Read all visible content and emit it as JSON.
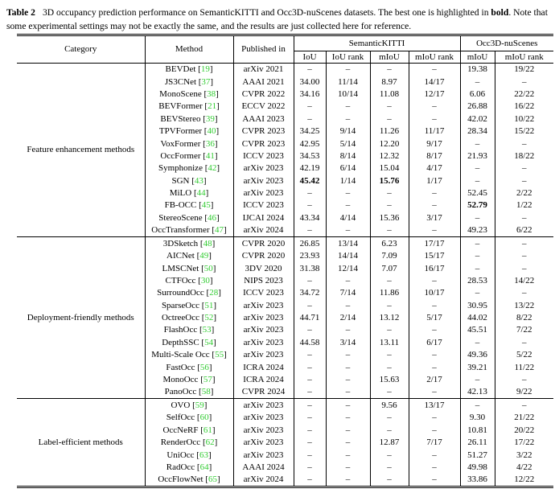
{
  "caption": {
    "label": "Table 2",
    "line1_a": "3D occupancy prediction performance on SemanticKITTI and Occ3D-nuScenes datasets. The best one is highlighted in ",
    "line1_bold": "bold",
    "line1_b": ". Note that some experimental settings may not be exactly the same, and the results are just collected here for reference."
  },
  "colors": {
    "citation_green": "#33cc33"
  },
  "table": {
    "header": {
      "category": "Category",
      "method": "Method",
      "published": "Published in",
      "kitti": "SemanticKITTI",
      "nuscenes": "Occ3D-nuScenes",
      "sub": [
        "IoU",
        "IoU rank",
        "mIoU",
        "mIoU rank",
        "mIoU",
        "mIoU rank"
      ]
    },
    "groups": [
      {
        "category": "Feature enhancement methods",
        "rows": [
          {
            "method": "BEVDet",
            "ref": "19",
            "venue": "arXiv 2021",
            "values": [
              "–",
              "–",
              "–",
              "–",
              "19.38",
              "19/22"
            ],
            "bold": []
          },
          {
            "method": "JS3CNet",
            "ref": "37",
            "venue": "AAAI 2021",
            "values": [
              "34.00",
              "11/14",
              "8.97",
              "14/17",
              "–",
              "–"
            ],
            "bold": []
          },
          {
            "method": "MonoScene",
            "ref": "38",
            "venue": "CVPR 2022",
            "values": [
              "34.16",
              "10/14",
              "11.08",
              "12/17",
              "6.06",
              "22/22"
            ],
            "bold": []
          },
          {
            "method": "BEVFormer",
            "ref": "21",
            "venue": "ECCV 2022",
            "values": [
              "–",
              "–",
              "–",
              "–",
              "26.88",
              "16/22"
            ],
            "bold": []
          },
          {
            "method": "BEVStereo",
            "ref": "39",
            "venue": "AAAI 2023",
            "values": [
              "–",
              "–",
              "–",
              "–",
              "42.02",
              "10/22"
            ],
            "bold": []
          },
          {
            "method": "TPVFormer",
            "ref": "40",
            "venue": "CVPR 2023",
            "values": [
              "34.25",
              "9/14",
              "11.26",
              "11/17",
              "28.34",
              "15/22"
            ],
            "bold": []
          },
          {
            "method": "VoxFormer",
            "ref": "36",
            "venue": "CVPR 2023",
            "values": [
              "42.95",
              "5/14",
              "12.20",
              "9/17",
              "–",
              "–"
            ],
            "bold": []
          },
          {
            "method": "OccFormer",
            "ref": "41",
            "venue": "ICCV 2023",
            "values": [
              "34.53",
              "8/14",
              "12.32",
              "8/17",
              "21.93",
              "18/22"
            ],
            "bold": []
          },
          {
            "method": "Symphonize",
            "ref": "42",
            "venue": "arXiv 2023",
            "values": [
              "42.19",
              "6/14",
              "15.04",
              "4/17",
              "–",
              "–"
            ],
            "bold": []
          },
          {
            "method": "SGN",
            "ref": "43",
            "venue": "arXiv 2023",
            "values": [
              "45.42",
              "1/14",
              "15.76",
              "1/17",
              "–",
              "–"
            ],
            "bold": [
              0,
              2
            ]
          },
          {
            "method": "MiLO",
            "ref": "44",
            "venue": "arXiv 2023",
            "values": [
              "–",
              "–",
              "–",
              "–",
              "52.45",
              "2/22"
            ],
            "bold": []
          },
          {
            "method": "FB-OCC",
            "ref": "45",
            "venue": "ICCV 2023",
            "values": [
              "–",
              "–",
              "–",
              "–",
              "52.79",
              "1/22"
            ],
            "bold": [
              4
            ]
          },
          {
            "method": "StereoScene",
            "ref": "46",
            "venue": "IJCAI 2024",
            "values": [
              "43.34",
              "4/14",
              "15.36",
              "3/17",
              "–",
              "–"
            ],
            "bold": []
          },
          {
            "method": "OccTransformer",
            "ref": "47",
            "venue": "arXiv 2024",
            "values": [
              "–",
              "–",
              "–",
              "–",
              "49.23",
              "6/22"
            ],
            "bold": []
          }
        ]
      },
      {
        "category": "Deployment-friendly methods",
        "rows": [
          {
            "method": "3DSketch",
            "ref": "48",
            "venue": "CVPR 2020",
            "values": [
              "26.85",
              "13/14",
              "6.23",
              "17/17",
              "–",
              "–"
            ],
            "bold": []
          },
          {
            "method": "AICNet",
            "ref": "49",
            "venue": "CVPR 2020",
            "values": [
              "23.93",
              "14/14",
              "7.09",
              "15/17",
              "–",
              "–"
            ],
            "bold": []
          },
          {
            "method": "LMSCNet",
            "ref": "50",
            "venue": "3DV 2020",
            "values": [
              "31.38",
              "12/14",
              "7.07",
              "16/17",
              "–",
              "–"
            ],
            "bold": []
          },
          {
            "method": "CTFOcc",
            "ref": "30",
            "venue": "NIPS 2023",
            "values": [
              "–",
              "–",
              "–",
              "–",
              "28.53",
              "14/22"
            ],
            "bold": []
          },
          {
            "method": "SurroundOcc",
            "ref": "28",
            "venue": "ICCV 2023",
            "values": [
              "34.72",
              "7/14",
              "11.86",
              "10/17",
              "–",
              "–"
            ],
            "bold": []
          },
          {
            "method": "SparseOcc",
            "ref": "51",
            "venue": "arXiv 2023",
            "values": [
              "–",
              "–",
              "–",
              "–",
              "30.95",
              "13/22"
            ],
            "bold": []
          },
          {
            "method": "OctreeOcc",
            "ref": "52",
            "venue": "arXiv 2023",
            "values": [
              "44.71",
              "2/14",
              "13.12",
              "5/17",
              "44.02",
              "8/22"
            ],
            "bold": []
          },
          {
            "method": "FlashOcc",
            "ref": "53",
            "venue": "arXiv 2023",
            "values": [
              "–",
              "–",
              "–",
              "–",
              "45.51",
              "7/22"
            ],
            "bold": []
          },
          {
            "method": "DepthSSC",
            "ref": "54",
            "venue": "arXiv 2023",
            "values": [
              "44.58",
              "3/14",
              "13.11",
              "6/17",
              "–",
              "–"
            ],
            "bold": []
          },
          {
            "method": "Multi-Scale Occ",
            "ref": "55",
            "venue": "arXiv 2023",
            "values": [
              "–",
              "–",
              "–",
              "–",
              "49.36",
              "5/22"
            ],
            "bold": []
          },
          {
            "method": "FastOcc",
            "ref": "56",
            "venue": "ICRA 2024",
            "values": [
              "–",
              "–",
              "–",
              "–",
              "39.21",
              "11/22"
            ],
            "bold": []
          },
          {
            "method": "MonoOcc",
            "ref": "57",
            "venue": "ICRA 2024",
            "values": [
              "–",
              "–",
              "15.63",
              "2/17",
              "–",
              "–"
            ],
            "bold": []
          },
          {
            "method": "PanoOcc",
            "ref": "58",
            "venue": "CVPR 2024",
            "values": [
              "–",
              "–",
              "–",
              "–",
              "42.13",
              "9/22"
            ],
            "bold": []
          }
        ]
      },
      {
        "category": "Label-efficient methods",
        "rows": [
          {
            "method": "OVO",
            "ref": "59",
            "venue": "arXiv 2023",
            "values": [
              "–",
              "–",
              "9.56",
              "13/17",
              "–",
              "–"
            ],
            "bold": []
          },
          {
            "method": "SelfOcc",
            "ref": "60",
            "venue": "arXiv 2023",
            "values": [
              "–",
              "–",
              "–",
              "–",
              "9.30",
              "21/22"
            ],
            "bold": []
          },
          {
            "method": "OccNeRF",
            "ref": "61",
            "venue": "arXiv 2023",
            "values": [
              "–",
              "–",
              "–",
              "–",
              "10.81",
              "20/22"
            ],
            "bold": []
          },
          {
            "method": "RenderOcc",
            "ref": "62",
            "venue": "arXiv 2023",
            "values": [
              "–",
              "–",
              "12.87",
              "7/17",
              "26.11",
              "17/22"
            ],
            "bold": []
          },
          {
            "method": "UniOcc",
            "ref": "63",
            "venue": "arXiv 2023",
            "values": [
              "–",
              "–",
              "–",
              "–",
              "51.27",
              "3/22"
            ],
            "bold": []
          },
          {
            "method": "RadOcc",
            "ref": "64",
            "venue": "AAAI 2024",
            "values": [
              "–",
              "–",
              "–",
              "–",
              "49.98",
              "4/22"
            ],
            "bold": []
          },
          {
            "method": "OccFlowNet",
            "ref": "65",
            "venue": "arXiv 2024",
            "values": [
              "–",
              "–",
              "–",
              "–",
              "33.86",
              "12/22"
            ],
            "bold": []
          }
        ]
      }
    ]
  }
}
